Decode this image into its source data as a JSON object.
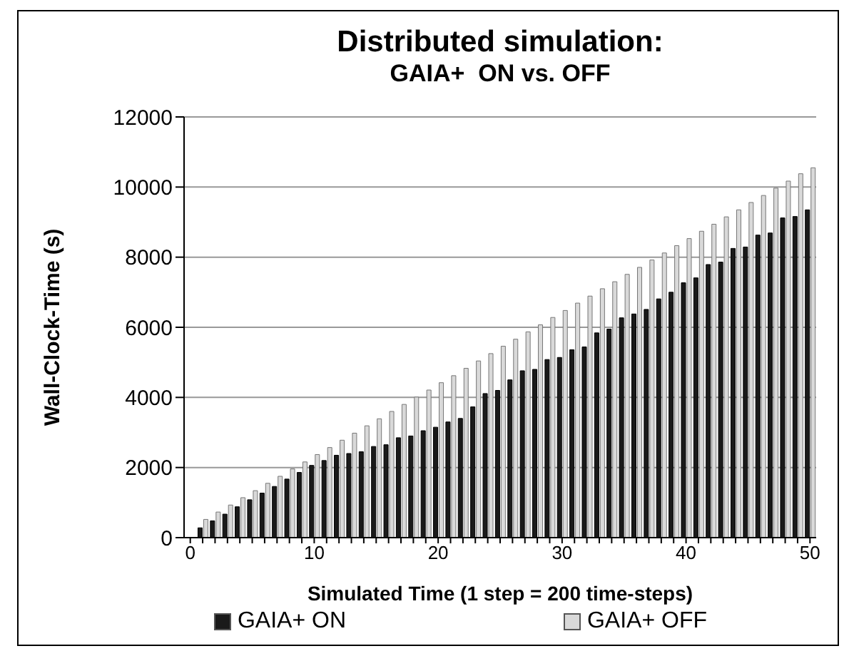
{
  "chart_data": {
    "type": "bar",
    "title": "Distributed simulation:",
    "subtitle": "GAIA+  ON vs. OFF",
    "xlabel": "Simulated Time (1 step = 200 time-steps)",
    "ylabel": "Wall-Clock-Time (s)",
    "categories": [
      "0",
      null,
      null,
      null,
      null,
      null,
      null,
      null,
      null,
      null,
      "10",
      null,
      null,
      null,
      null,
      null,
      null,
      null,
      null,
      null,
      "20",
      null,
      null,
      null,
      null,
      null,
      null,
      null,
      null,
      null,
      "30",
      null,
      null,
      null,
      null,
      null,
      null,
      null,
      null,
      null,
      "40",
      null,
      null,
      null,
      null,
      null,
      null,
      null,
      null,
      null,
      "50"
    ],
    "series": [
      {
        "name": "GAIA+ ON",
        "color": "#1a1a1a",
        "values": [
          0,
          280,
          480,
          670,
          880,
          1080,
          1270,
          1460,
          1670,
          1860,
          2060,
          2200,
          2350,
          2400,
          2450,
          2600,
          2650,
          2850,
          2900,
          3050,
          3150,
          3300,
          3400,
          3730,
          4110,
          4200,
          4500,
          4760,
          4800,
          5080,
          5140,
          5360,
          5440,
          5840,
          5950,
          6270,
          6380,
          6510,
          6810,
          7000,
          7270,
          7410,
          7790,
          7860,
          8250,
          8290,
          8630,
          8690,
          9120,
          9160,
          9350
        ]
      },
      {
        "name": "GAIA+ OFF",
        "color": "#d9d9d9",
        "values": [
          0,
          520,
          730,
          930,
          1140,
          1340,
          1550,
          1750,
          1960,
          2160,
          2370,
          2570,
          2780,
          2980,
          3190,
          3390,
          3600,
          3800,
          4010,
          4210,
          4420,
          4620,
          4830,
          5040,
          5250,
          5460,
          5660,
          5870,
          6070,
          6280,
          6480,
          6690,
          6890,
          7100,
          7300,
          7510,
          7710,
          7920,
          8120,
          8330,
          8530,
          8740,
          8940,
          9150,
          9350,
          9560,
          9760,
          9970,
          10170,
          10380,
          10550
        ]
      }
    ],
    "ylim": [
      0,
      12000
    ],
    "yticks": [
      0,
      2000,
      4000,
      6000,
      8000,
      10000,
      12000
    ],
    "grid": "y",
    "legend": "bottom"
  }
}
